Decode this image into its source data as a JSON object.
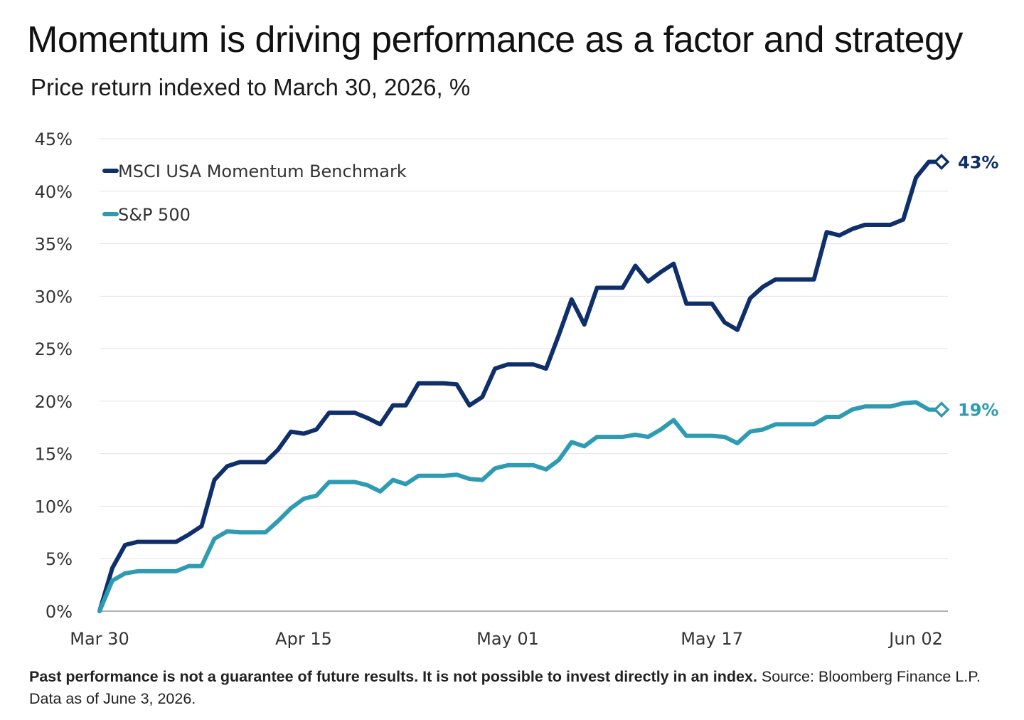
{
  "title": "Momentum is driving performance as a factor and strategy",
  "subtitle": "Price return indexed to March 30, 2026, %",
  "footnote": {
    "disclaimer": "Past performance is not a guarantee of future results. It is not possible to invest directly in an index.",
    "source": "Source: Bloomberg Finance L.P.",
    "data_as_of": "Data as of June 3, 2026."
  },
  "chart_data": {
    "type": "line",
    "title": "Momentum is driving performance as a factor and strategy",
    "subtitle": "Price return indexed to March 30, 2026, %",
    "xlabel": "",
    "ylabel": "",
    "x_tick_labels": [
      "Mar 30",
      "Apr 15",
      "May 01",
      "May 17",
      "Jun 02"
    ],
    "x_tick_index": [
      0,
      16,
      32,
      48,
      64
    ],
    "ylim": [
      0,
      45
    ],
    "y_ticks": [
      0,
      5,
      10,
      15,
      20,
      25,
      30,
      35,
      40,
      45
    ],
    "y_tick_labels": [
      "0%",
      "5%",
      "10%",
      "15%",
      "20%",
      "25%",
      "30%",
      "35%",
      "40%",
      "45%"
    ],
    "grid": "horizontal",
    "legend_position": "top-left",
    "series": [
      {
        "name": "MSCI USA Momentum Benchmark",
        "color": "#0f2f6b",
        "end_label": "43%",
        "values": [
          0,
          4.1,
          6.3,
          6.6,
          6.6,
          6.6,
          6.6,
          7.3,
          8.1,
          12.5,
          13.8,
          14.2,
          14.2,
          14.2,
          15.4,
          17.1,
          16.9,
          17.3,
          18.9,
          18.9,
          18.9,
          18.4,
          17.8,
          19.6,
          19.6,
          21.7,
          21.7,
          21.7,
          21.6,
          19.6,
          20.4,
          23.1,
          23.5,
          23.5,
          23.5,
          23.1,
          26.3,
          29.7,
          27.3,
          30.8,
          30.8,
          30.8,
          32.9,
          31.4,
          32.3,
          33.1,
          29.3,
          29.3,
          29.3,
          27.5,
          26.8,
          29.8,
          30.9,
          31.6,
          31.6,
          31.6,
          31.6,
          36.1,
          35.8,
          36.4,
          36.8,
          36.8,
          36.8,
          37.3,
          41.3,
          42.8,
          42.8
        ]
      },
      {
        "name": "S&P 500",
        "color": "#2e9bb3",
        "end_label": "19%",
        "values": [
          0,
          2.9,
          3.6,
          3.8,
          3.8,
          3.8,
          3.8,
          4.3,
          4.3,
          6.9,
          7.6,
          7.5,
          7.5,
          7.5,
          8.6,
          9.8,
          10.7,
          11.0,
          12.3,
          12.3,
          12.3,
          12.0,
          11.4,
          12.5,
          12.1,
          12.9,
          12.9,
          12.9,
          13.0,
          12.6,
          12.5,
          13.6,
          13.9,
          13.9,
          13.9,
          13.5,
          14.4,
          16.1,
          15.7,
          16.6,
          16.6,
          16.6,
          16.8,
          16.6,
          17.3,
          18.2,
          16.7,
          16.7,
          16.7,
          16.6,
          16.0,
          17.1,
          17.3,
          17.8,
          17.8,
          17.8,
          17.8,
          18.5,
          18.5,
          19.2,
          19.5,
          19.5,
          19.5,
          19.8,
          19.9,
          19.2,
          19.2
        ]
      }
    ]
  }
}
